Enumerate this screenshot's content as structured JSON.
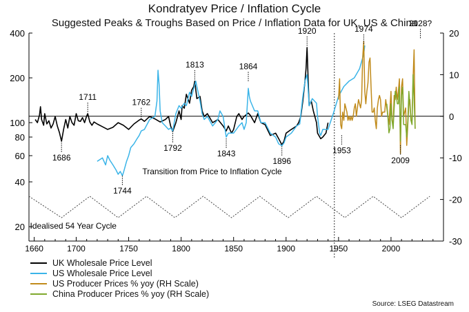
{
  "chart_data": {
    "type": "line",
    "title": "Kondratyev Price / Inflation Cycle",
    "subtitle": "Suggested Peaks & Troughs Based on Price / Inflation Data for UK, US & China",
    "x_ticks": [
      1660,
      1700,
      1750,
      1800,
      1850,
      1900,
      1950,
      2000
    ],
    "xlim": [
      1655,
      2050
    ],
    "y_left": {
      "scale": "log",
      "ticks": [
        20,
        40,
        60,
        80,
        100,
        200,
        400
      ],
      "ylim": [
        16,
        400
      ]
    },
    "y_right": {
      "ticks": [
        20,
        10,
        0,
        -10,
        -20,
        -30
      ],
      "ylim": [
        -30,
        20
      ]
    },
    "annotations": [
      {
        "label": "1686",
        "year": 1686,
        "value": 75,
        "kind": "trough"
      },
      {
        "label": "1711",
        "year": 1711,
        "value": 115,
        "kind": "peak"
      },
      {
        "label": "1744",
        "year": 1744,
        "value": 45,
        "kind": "trough"
      },
      {
        "label": "1762",
        "year": 1762,
        "value": 106,
        "kind": "peak"
      },
      {
        "label": "1792",
        "year": 1792,
        "value": 87,
        "kind": "trough"
      },
      {
        "label": "1813",
        "year": 1813,
        "value": 190,
        "kind": "peak"
      },
      {
        "label": "1843",
        "year": 1843,
        "value": 80,
        "kind": "trough"
      },
      {
        "label": "1864",
        "year": 1864,
        "value": 185,
        "kind": "peak"
      },
      {
        "label": "1896",
        "year": 1896,
        "value": 71,
        "kind": "trough"
      },
      {
        "label": "1920",
        "year": 1920,
        "value": 320,
        "kind": "peak"
      },
      {
        "label": "1953",
        "year": 1953,
        "value": 84,
        "kind": "trough"
      },
      {
        "label": "1974",
        "year": 1974,
        "value": 330,
        "kind": "peak"
      },
      {
        "label": "2009",
        "year": 2009,
        "value": 72,
        "kind": "trough"
      },
      {
        "label": "2028?",
        "year": 2028,
        "value": 360,
        "kind": "peak"
      }
    ],
    "text_annotations": {
      "transition": "Transition from Price to Inflation Cycle",
      "cycle": "Idealised 54 Year Cycle"
    },
    "transition_year": 1946,
    "idealised_cycle": {
      "years": [
        1655,
        1686,
        1713,
        1740,
        1767,
        1794,
        1821,
        1848,
        1875,
        1902,
        1929,
        1956,
        1983,
        2010,
        2037
      ],
      "values": [
        32,
        23,
        32,
        23,
        32,
        23,
        32,
        23,
        32,
        23,
        32,
        23,
        32,
        23,
        32
      ]
    },
    "series": [
      {
        "name": "UK Wholesale Price Level",
        "color": "#000000",
        "axis": "left",
        "x": [
          1661,
          1663,
          1665,
          1666,
          1667,
          1669,
          1670,
          1672,
          1674,
          1676,
          1678,
          1680,
          1682,
          1684,
          1686,
          1688,
          1690,
          1692,
          1694,
          1696,
          1698,
          1700,
          1702,
          1704,
          1706,
          1708,
          1710,
          1711,
          1713,
          1715,
          1717,
          1720,
          1725,
          1730,
          1735,
          1740,
          1745,
          1750,
          1755,
          1760,
          1762,
          1765,
          1770,
          1775,
          1780,
          1785,
          1788,
          1790,
          1792,
          1795,
          1798,
          1800,
          1801,
          1803,
          1805,
          1808,
          1810,
          1812,
          1813,
          1815,
          1818,
          1820,
          1822,
          1825,
          1830,
          1835,
          1840,
          1843,
          1845,
          1848,
          1850,
          1853,
          1855,
          1858,
          1860,
          1864,
          1866,
          1870,
          1873,
          1876,
          1880,
          1885,
          1890,
          1893,
          1896,
          1898,
          1900,
          1905,
          1910,
          1912,
          1914,
          1916,
          1918,
          1919,
          1920,
          1921,
          1922,
          1924,
          1926,
          1929,
          1930,
          1933,
          1935,
          1938,
          1940
        ],
        "y": [
          105,
          100,
          112,
          128,
          105,
          96,
          115,
          98,
          103,
          92,
          98,
          110,
          95,
          86,
          75,
          90,
          105,
          92,
          110,
          100,
          96,
          115,
          103,
          102,
          108,
          100,
          111,
          115,
          101,
          96,
          101,
          98,
          94,
          90,
          93,
          100,
          96,
          90,
          98,
          104,
          106,
          102,
          110,
          106,
          101,
          105,
          110,
          95,
          87,
          100,
          120,
          105,
          130,
          125,
          155,
          135,
          165,
          175,
          190,
          145,
          150,
          120,
          110,
          115,
          100,
          105,
          95,
          88,
          95,
          85,
          90,
          110,
          115,
          105,
          110,
          116,
          112,
          100,
          115,
          100,
          97,
          82,
          85,
          78,
          71,
          75,
          85,
          90,
          95,
          100,
          110,
          140,
          190,
          230,
          320,
          200,
          130,
          140,
          120,
          100,
          85,
          78,
          80,
          85,
          100
        ]
      },
      {
        "name": "US Wholesale Price Level",
        "color": "#3ab4e8",
        "axis": "left",
        "x": [
          1720,
          1725,
          1728,
          1730,
          1732,
          1735,
          1738,
          1740,
          1742,
          1744,
          1745,
          1748,
          1750,
          1752,
          1755,
          1758,
          1760,
          1762,
          1765,
          1770,
          1775,
          1777,
          1778,
          1779,
          1780,
          1782,
          1785,
          1788,
          1790,
          1792,
          1795,
          1798,
          1800,
          1803,
          1805,
          1808,
          1810,
          1812,
          1814,
          1815,
          1818,
          1820,
          1822,
          1825,
          1830,
          1835,
          1837,
          1840,
          1843,
          1845,
          1850,
          1855,
          1858,
          1860,
          1862,
          1864,
          1865,
          1866,
          1870,
          1873,
          1876,
          1880,
          1885,
          1890,
          1893,
          1896,
          1898,
          1900,
          1905,
          1910,
          1913,
          1916,
          1918,
          1920,
          1921,
          1922,
          1925,
          1929,
          1930,
          1932,
          1933,
          1935,
          1940,
          1945,
          1950,
          1955,
          1960,
          1965,
          1970,
          1974,
          1975
        ],
        "y": [
          55,
          58,
          52,
          60,
          56,
          52,
          48,
          45,
          47,
          44,
          46,
          55,
          60,
          68,
          72,
          78,
          82,
          88,
          90,
          105,
          110,
          140,
          225,
          180,
          120,
          100,
          95,
          90,
          92,
          88,
          115,
          130,
          125,
          135,
          130,
          160,
          150,
          170,
          190,
          175,
          140,
          115,
          105,
          110,
          95,
          105,
          120,
          110,
          80,
          85,
          85,
          95,
          100,
          90,
          100,
          170,
          150,
          140,
          120,
          120,
          100,
          100,
          85,
          80,
          72,
          70,
          73,
          80,
          85,
          95,
          98,
          150,
          190,
          210,
          170,
          130,
          145,
          135,
          110,
          85,
          82,
          90,
          90,
          115,
          150,
          175,
          190,
          200,
          230,
          290,
          330
        ]
      },
      {
        "name": "US Producer Prices % yoy (RH Scale)",
        "color": "#c08a1a",
        "axis": "right",
        "x": [
          1950,
          1951,
          1952,
          1953,
          1954,
          1955,
          1956,
          1957,
          1958,
          1959,
          1960,
          1961,
          1962,
          1963,
          1964,
          1965,
          1966,
          1967,
          1968,
          1969,
          1970,
          1971,
          1972,
          1973,
          1974,
          1975,
          1976,
          1977,
          1978,
          1979,
          1980,
          1981,
          1982,
          1983,
          1984,
          1985,
          1986,
          1987,
          1988,
          1989,
          1990,
          1991,
          1992,
          1993,
          1994,
          1995,
          1996,
          1997,
          1998,
          1999,
          2000,
          2001,
          2002,
          2003,
          2004,
          2005,
          2006,
          2007,
          2008,
          2009,
          2010,
          2011,
          2012,
          2013,
          2014,
          2015,
          2016,
          2017,
          2018,
          2019,
          2020,
          2021,
          2022,
          2023
        ],
        "y": [
          4,
          9,
          -2,
          -3,
          1,
          -1,
          3,
          2,
          1,
          -1,
          0,
          -1,
          0,
          -1,
          0,
          2,
          3,
          0,
          2,
          4,
          3,
          2,
          4,
          14,
          18,
          6,
          3,
          6,
          8,
          13,
          14,
          7,
          1,
          1,
          2,
          -1,
          -3,
          2,
          4,
          5,
          4,
          0,
          1,
          1,
          1,
          4,
          2,
          0,
          -2,
          2,
          6,
          -1,
          -2,
          5,
          4,
          7,
          4,
          6,
          9,
          -9,
          7,
          9,
          0,
          1,
          2,
          -7,
          -2,
          3,
          4,
          -1,
          -1,
          9,
          16,
          -3
        ]
      },
      {
        "name": "China Producer Prices % yoy (RH Scale)",
        "color": "#7ea82c",
        "axis": "right",
        "x": [
          1996,
          1997,
          1998,
          1999,
          2000,
          2001,
          2002,
          2003,
          2004,
          2005,
          2006,
          2007,
          2008,
          2009,
          2010,
          2011,
          2012,
          2013,
          2014,
          2015,
          2016,
          2017,
          2018,
          2019,
          2020,
          2021,
          2022,
          2023
        ],
        "y": [
          3,
          0,
          -4,
          -3,
          3,
          -1,
          -3,
          2,
          6,
          5,
          3,
          3,
          7,
          -6,
          5,
          7,
          -2,
          -2,
          -2,
          -5,
          -1,
          6,
          3,
          -1,
          -2,
          10,
          4,
          -3
        ]
      }
    ]
  },
  "legend": [
    {
      "label": "UK Wholesale Price Level",
      "color": "#000000"
    },
    {
      "label": "US Wholesale Price Level",
      "color": "#3ab4e8"
    },
    {
      "label": "US Producer Prices % yoy (RH Scale)",
      "color": "#c08a1a"
    },
    {
      "label": "China Producer Prices % yoy (RH Scale)",
      "color": "#7ea82c"
    }
  ],
  "source": "Source: LSEG Datastream"
}
